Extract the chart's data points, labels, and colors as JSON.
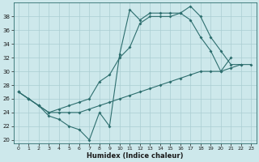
{
  "title": "",
  "xlabel": "Humidex (Indice chaleur)",
  "bg_color": "#cde8eb",
  "line_color": "#2d6e6e",
  "grid_color": "#b0d8dc",
  "ylim": [
    19.5,
    40
  ],
  "xlim": [
    -0.5,
    23.5
  ],
  "yticks": [
    20,
    22,
    24,
    26,
    28,
    30,
    32,
    34,
    36,
    38
  ],
  "xticks": [
    0,
    1,
    2,
    3,
    4,
    5,
    6,
    7,
    8,
    9,
    10,
    11,
    12,
    13,
    14,
    15,
    16,
    17,
    18,
    19,
    20,
    21,
    22,
    23
  ],
  "s1_x": [
    0,
    1,
    2,
    3,
    4,
    5,
    6,
    7,
    8,
    9,
    10,
    11,
    12,
    13,
    14,
    15,
    16,
    17,
    18,
    19,
    20,
    21,
    22
  ],
  "s1_y": [
    27,
    26,
    25,
    23.5,
    23,
    22,
    21.5,
    20,
    24,
    22,
    32.5,
    39,
    37.5,
    38.5,
    38.5,
    38.5,
    38.5,
    39.5,
    38,
    35,
    33,
    31,
    31
  ],
  "s2_x": [
    0,
    1,
    2,
    3,
    4,
    5,
    6,
    7,
    8,
    9,
    10,
    11,
    12,
    13,
    14,
    15,
    16,
    17,
    18,
    19,
    20,
    21
  ],
  "s2_y": [
    27,
    26,
    25,
    24,
    24.5,
    25,
    25.5,
    26,
    28.5,
    29.5,
    32,
    33.5,
    37,
    38,
    38,
    38,
    38.5,
    37.5,
    35,
    33,
    30,
    32
  ],
  "s3_x": [
    0,
    1,
    2,
    3,
    4,
    5,
    6,
    7,
    8,
    9,
    10,
    11,
    12,
    13,
    14,
    15,
    16,
    17,
    18,
    19,
    20,
    21,
    22,
    23
  ],
  "s3_y": [
    27,
    26,
    25,
    24,
    24,
    24,
    24,
    24.5,
    25,
    25.5,
    26,
    26.5,
    27,
    27.5,
    28,
    28.5,
    29,
    29.5,
    30,
    30,
    30,
    30.5,
    31,
    31
  ]
}
